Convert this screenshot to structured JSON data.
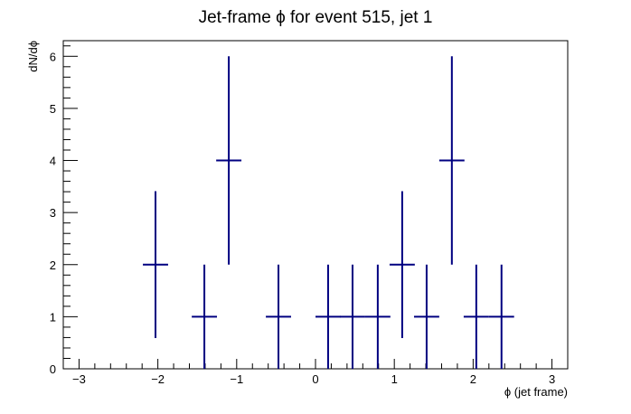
{
  "chart_data": {
    "type": "scatter",
    "title": "Jet-frame   ϕ for event 515, jet 1",
    "xlabel": "ϕ (jet frame)",
    "ylabel": "dN/dϕ",
    "xlim": [
      -3.2,
      3.2
    ],
    "ylim": [
      0,
      6.3
    ],
    "x_ticks": [
      -3,
      -2,
      -1,
      0,
      1,
      2,
      3
    ],
    "x_tick_labels": [
      "−3",
      "−2",
      "−1",
      "0",
      "1",
      "2",
      "3"
    ],
    "y_ticks": [
      0,
      1,
      2,
      3,
      4,
      5,
      6
    ],
    "y_tick_labels": [
      "0",
      "1",
      "2",
      "3",
      "4",
      "5",
      "6"
    ],
    "grid": false,
    "legend": "none",
    "marker_color": "#000080",
    "points": [
      {
        "x": -2.03,
        "xerr": 0.16,
        "y": 2,
        "ylow": 0.59,
        "yhigh": 3.41
      },
      {
        "x": -1.41,
        "xerr": 0.16,
        "y": 1,
        "ylow": 0,
        "yhigh": 2
      },
      {
        "x": -1.1,
        "xerr": 0.16,
        "y": 4,
        "ylow": 2,
        "yhigh": 6
      },
      {
        "x": -0.47,
        "xerr": 0.16,
        "y": 1,
        "ylow": 0,
        "yhigh": 2
      },
      {
        "x": 0.16,
        "xerr": 0.16,
        "y": 1,
        "ylow": 0,
        "yhigh": 2
      },
      {
        "x": 0.47,
        "xerr": 0.16,
        "y": 1,
        "ylow": 0,
        "yhigh": 2
      },
      {
        "x": 0.79,
        "xerr": 0.16,
        "y": 1,
        "ylow": 0,
        "yhigh": 2
      },
      {
        "x": 1.1,
        "xerr": 0.16,
        "y": 2,
        "ylow": 0.59,
        "yhigh": 3.41
      },
      {
        "x": 1.41,
        "xerr": 0.16,
        "y": 1,
        "ylow": 0,
        "yhigh": 2
      },
      {
        "x": 1.73,
        "xerr": 0.16,
        "y": 4,
        "ylow": 2,
        "yhigh": 6
      },
      {
        "x": 2.04,
        "xerr": 0.16,
        "y": 1,
        "ylow": 0,
        "yhigh": 2
      },
      {
        "x": 2.36,
        "xerr": 0.16,
        "y": 1,
        "ylow": 0,
        "yhigh": 2
      }
    ]
  }
}
